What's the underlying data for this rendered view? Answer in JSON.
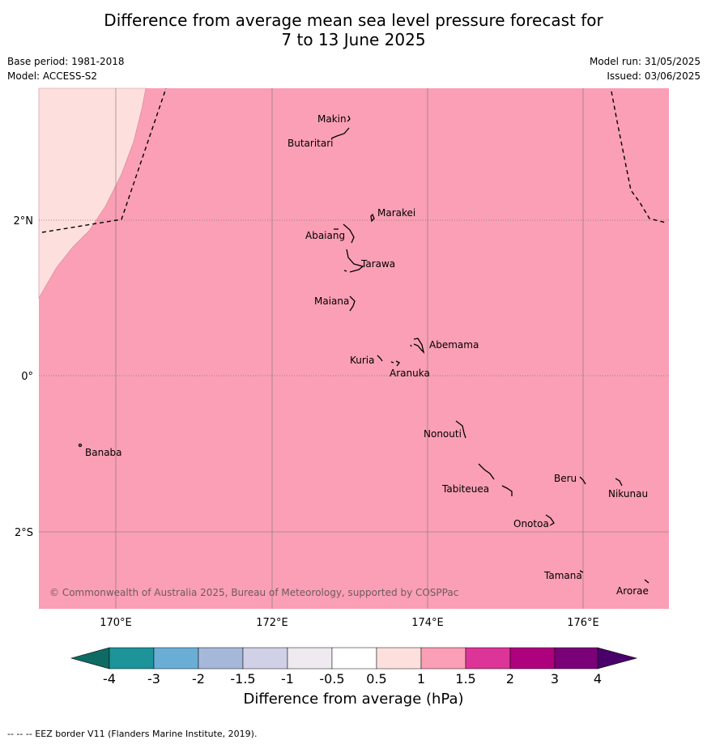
{
  "title_line1": "Difference from average mean sea level pressure forecast for",
  "title_line2": "7 to 13 June 2025",
  "base_period": "Base period: 1981-2018",
  "model": "Model: ACCESS-S2",
  "model_run": "Model run: 31/05/2025",
  "issued": "Issued: 03/06/2025",
  "copyright": "© Commonwealth of Australia 2025, Bureau of Meteorology, supported by COSPPac",
  "footnote": "--  --  -- EEZ border V11 (Flanders Marine Institute, 2019).",
  "colorbar": {
    "title": "Difference from average (hPa)",
    "tick_labels": [
      "-4",
      "-3",
      "-2",
      "-1.5",
      "-1",
      "-0.5",
      "0.5",
      "1",
      "1.5",
      "2",
      "3",
      "4"
    ],
    "colors": [
      "#0e6b63",
      "#1c9499",
      "#6aaed6",
      "#a6b8da",
      "#d0d1e6",
      "#efeaef",
      "#ffffff",
      "#fde0dd",
      "#fa9fb5",
      "#dd3497",
      "#ae017e",
      "#7a0177",
      "#49006a"
    ]
  },
  "map": {
    "lon_labels": [
      "170°E",
      "172°E",
      "174°E",
      "176°E"
    ],
    "lat_labels": [
      "2°N",
      "0°",
      "2°S"
    ],
    "colors": {
      "fill_main": "#fa9fb5",
      "fill_light": "#fde0dd",
      "grid": "#777777"
    },
    "islands": [
      "Makin",
      "Butaritari",
      "Marakei",
      "Abaiang",
      "Tarawa",
      "Maiana",
      "Abemama",
      "Kuria",
      "Aranuka",
      "Nonouti",
      "Banaba",
      "Beru",
      "Nikunau",
      "Tabiteuea",
      "Onotoa",
      "Tamana",
      "Arorae"
    ]
  }
}
